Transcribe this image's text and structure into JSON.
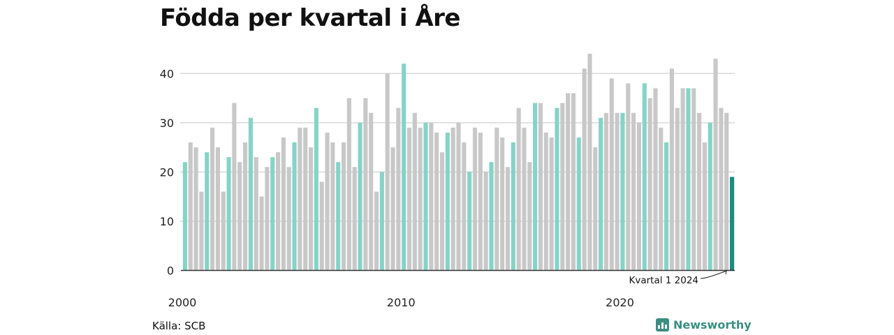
{
  "title": "Födda per kvartal i Åre",
  "source": "Källa: SCB",
  "brand": "Newsworthy",
  "colors": {
    "bar": "#c8c8c8",
    "highlight_quarter": "#86d3c8",
    "latest": "#1d8a7e",
    "grid": "#d9d9d9",
    "axis": "#333333",
    "brand": "#3a8f82"
  },
  "chart_data": {
    "type": "bar",
    "title": "Födda per kvartal i Åre",
    "xlabel": "",
    "ylabel": "",
    "ylim": [
      0,
      45
    ],
    "yticks": [
      0,
      10,
      20,
      30,
      40
    ],
    "grid": true,
    "start_year": 2000,
    "highlight_quarter": 1,
    "x_tick_labels": [
      "2000",
      "2010",
      "2020"
    ],
    "annotation": "Kvartal 1 2024",
    "values": [
      22,
      26,
      25,
      16,
      24,
      29,
      25,
      16,
      23,
      34,
      22,
      26,
      31,
      23,
      15,
      21,
      23,
      24,
      27,
      21,
      26,
      29,
      29,
      25,
      33,
      18,
      28,
      26,
      22,
      26,
      35,
      21,
      30,
      35,
      32,
      16,
      20,
      40,
      25,
      33,
      42,
      29,
      32,
      29,
      30,
      30,
      28,
      24,
      28,
      29,
      30,
      26,
      20,
      29,
      28,
      20,
      22,
      29,
      27,
      21,
      26,
      33,
      29,
      22,
      34,
      34,
      28,
      27,
      33,
      34,
      36,
      36,
      27,
      41,
      44,
      25,
      31,
      32,
      39,
      32,
      32,
      38,
      32,
      30,
      38,
      35,
      37,
      29,
      26,
      41,
      33,
      37,
      37,
      37,
      32,
      26,
      30,
      43,
      33,
      32,
      19
    ]
  }
}
